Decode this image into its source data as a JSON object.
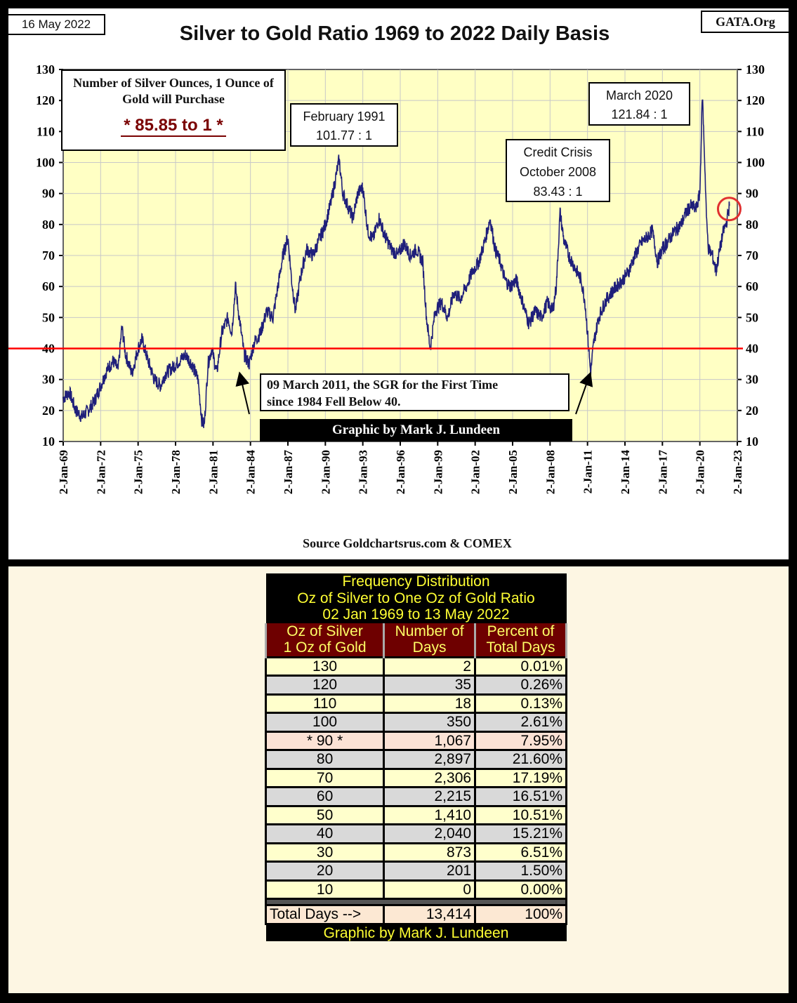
{
  "header": {
    "date": "16 May 2022",
    "site": "GATA.Org"
  },
  "chart_data": {
    "type": "line",
    "title": "Silver to Gold Ratio 1969 to 2022 Daily Basis",
    "xlabel": "",
    "ylabel": "",
    "ylim": [
      10,
      130
    ],
    "yticks": [
      "130",
      "120",
      "110",
      "100",
      "90",
      "80",
      "70",
      "60",
      "50",
      "40",
      "30",
      "20",
      "10"
    ],
    "xticks": [
      "2-Jan-69",
      "2-Jan-72",
      "2-Jan-75",
      "2-Jan-78",
      "2-Jan-81",
      "2-Jan-84",
      "2-Jan-87",
      "2-Jan-90",
      "2-Jan-93",
      "2-Jan-96",
      "2-Jan-99",
      "2-Jan-02",
      "2-Jan-05",
      "2-Jan-08",
      "2-Jan-11",
      "2-Jan-14",
      "2-Jan-17",
      "2-Jan-20",
      "2-Jan-23"
    ],
    "xlim": [
      1969,
      2023
    ],
    "grid": true,
    "reference_line": {
      "value": 40,
      "color": "#ff0000"
    },
    "line_color": "#1f1f7a",
    "series": [
      {
        "name": "Silver to Gold Ratio",
        "points": [
          [
            1969.0,
            24
          ],
          [
            1969.5,
            26
          ],
          [
            1970.0,
            20
          ],
          [
            1970.5,
            18
          ],
          [
            1971.0,
            20
          ],
          [
            1971.5,
            23
          ],
          [
            1972.0,
            28
          ],
          [
            1972.5,
            33
          ],
          [
            1973.0,
            36
          ],
          [
            1973.4,
            33
          ],
          [
            1973.7,
            47
          ],
          [
            1974.0,
            38
          ],
          [
            1974.5,
            32
          ],
          [
            1975.0,
            40
          ],
          [
            1975.3,
            43
          ],
          [
            1975.8,
            36
          ],
          [
            1976.3,
            30
          ],
          [
            1976.8,
            28
          ],
          [
            1977.2,
            32
          ],
          [
            1977.8,
            34
          ],
          [
            1978.3,
            36
          ],
          [
            1978.8,
            38
          ],
          [
            1979.3,
            35
          ],
          [
            1979.8,
            30
          ],
          [
            1980.1,
            17
          ],
          [
            1980.3,
            15
          ],
          [
            1980.6,
            35
          ],
          [
            1980.9,
            40
          ],
          [
            1981.3,
            32
          ],
          [
            1981.7,
            45
          ],
          [
            1982.2,
            50
          ],
          [
            1982.5,
            45
          ],
          [
            1982.8,
            60
          ],
          [
            1983.1,
            50
          ],
          [
            1983.5,
            38
          ],
          [
            1983.9,
            35
          ],
          [
            1984.3,
            42
          ],
          [
            1984.8,
            45
          ],
          [
            1985.3,
            52
          ],
          [
            1985.8,
            50
          ],
          [
            1986.2,
            60
          ],
          [
            1986.6,
            70
          ],
          [
            1987.0,
            76
          ],
          [
            1987.3,
            62
          ],
          [
            1987.6,
            52
          ],
          [
            1988.0,
            63
          ],
          [
            1988.5,
            72
          ],
          [
            1989.0,
            70
          ],
          [
            1989.5,
            75
          ],
          [
            1990.0,
            80
          ],
          [
            1990.5,
            88
          ],
          [
            1991.1,
            101
          ],
          [
            1991.4,
            90
          ],
          [
            1991.8,
            86
          ],
          [
            1992.2,
            82
          ],
          [
            1992.6,
            90
          ],
          [
            1993.0,
            92
          ],
          [
            1993.4,
            78
          ],
          [
            1993.8,
            75
          ],
          [
            1994.3,
            82
          ],
          [
            1994.8,
            76
          ],
          [
            1995.3,
            72
          ],
          [
            1995.8,
            70
          ],
          [
            1996.3,
            74
          ],
          [
            1996.8,
            70
          ],
          [
            1997.3,
            72
          ],
          [
            1997.8,
            68
          ],
          [
            1998.1,
            50
          ],
          [
            1998.4,
            40
          ],
          [
            1998.8,
            52
          ],
          [
            1999.3,
            55
          ],
          [
            1999.8,
            50
          ],
          [
            2000.3,
            58
          ],
          [
            2000.8,
            56
          ],
          [
            2001.3,
            60
          ],
          [
            2001.8,
            65
          ],
          [
            2002.3,
            68
          ],
          [
            2002.8,
            75
          ],
          [
            2003.2,
            82
          ],
          [
            2003.6,
            72
          ],
          [
            2004.0,
            68
          ],
          [
            2004.4,
            62
          ],
          [
            2004.8,
            60
          ],
          [
            2005.3,
            62
          ],
          [
            2005.8,
            55
          ],
          [
            2006.3,
            48
          ],
          [
            2006.8,
            52
          ],
          [
            2007.3,
            50
          ],
          [
            2007.8,
            55
          ],
          [
            2008.2,
            52
          ],
          [
            2008.5,
            60
          ],
          [
            2008.8,
            84
          ],
          [
            2009.1,
            75
          ],
          [
            2009.5,
            70
          ],
          [
            2010.0,
            66
          ],
          [
            2010.5,
            62
          ],
          [
            2010.8,
            55
          ],
          [
            2011.0,
            45
          ],
          [
            2011.25,
            32
          ],
          [
            2011.5,
            42
          ],
          [
            2011.9,
            50
          ],
          [
            2012.4,
            55
          ],
          [
            2012.9,
            58
          ],
          [
            2013.3,
            60
          ],
          [
            2013.8,
            62
          ],
          [
            2014.3,
            65
          ],
          [
            2014.8,
            70
          ],
          [
            2015.3,
            74
          ],
          [
            2015.8,
            76
          ],
          [
            2016.2,
            78
          ],
          [
            2016.6,
            68
          ],
          [
            2017.0,
            72
          ],
          [
            2017.5,
            75
          ],
          [
            2018.0,
            78
          ],
          [
            2018.5,
            80
          ],
          [
            2018.9,
            84
          ],
          [
            2019.3,
            86
          ],
          [
            2019.7,
            85
          ],
          [
            2020.0,
            90
          ],
          [
            2020.2,
            122
          ],
          [
            2020.35,
            105
          ],
          [
            2020.55,
            80
          ],
          [
            2020.7,
            72
          ],
          [
            2021.0,
            70
          ],
          [
            2021.3,
            65
          ],
          [
            2021.6,
            72
          ],
          [
            2021.9,
            78
          ],
          [
            2022.1,
            80
          ],
          [
            2022.37,
            86
          ]
        ]
      }
    ],
    "annotations": {
      "current": {
        "heading": "Number of Silver Ounces, 1 Ounce of Gold will Purchase",
        "value": "* 85.85 to 1 *"
      },
      "feb1991": {
        "line1": "February 1991",
        "line2": "101.77  : 1"
      },
      "mar2020": {
        "line1": "March 2020",
        "line2": "121.84  : 1"
      },
      "crisis": {
        "line1": "Credit Crisis",
        "line2": "October 2008",
        "line3": "83.43  : 1"
      },
      "march2011": {
        "line1": "09 March 2011, the SGR for the First Time",
        "line2": "since 1984 Fell Below 40."
      },
      "credit": "Graphic by Mark J. Lundeen",
      "circle_marker": {
        "year": 2022.35,
        "value": 85
      }
    },
    "source": "Source Goldchartsrus.com & COMEX"
  },
  "table": {
    "title": [
      "Frequency Distribution",
      "Oz of Silver to One Oz of Gold Ratio",
      "02 Jan 1969 to 13 May 2022"
    ],
    "headers": [
      [
        "Oz of Silver",
        "1 Oz of Gold"
      ],
      [
        "Number of",
        "Days"
      ],
      [
        "Percent of",
        "Total Days"
      ]
    ],
    "rows": [
      {
        "ratio": "130",
        "days": "2",
        "pct": "0.01%"
      },
      {
        "ratio": "120",
        "days": "35",
        "pct": "0.26%"
      },
      {
        "ratio": "110",
        "days": "18",
        "pct": "0.13%"
      },
      {
        "ratio": "100",
        "days": "350",
        "pct": "2.61%"
      },
      {
        "ratio": "* 90 *",
        "days": "1,067",
        "pct": "7.95%"
      },
      {
        "ratio": "80",
        "days": "2,897",
        "pct": "21.60%"
      },
      {
        "ratio": "70",
        "days": "2,306",
        "pct": "17.19%"
      },
      {
        "ratio": "60",
        "days": "2,215",
        "pct": "16.51%"
      },
      {
        "ratio": "50",
        "days": "1,410",
        "pct": "10.51%"
      },
      {
        "ratio": "40",
        "days": "2,040",
        "pct": "15.21%"
      },
      {
        "ratio": "30",
        "days": "873",
        "pct": "6.51%"
      },
      {
        "ratio": "20",
        "days": "201",
        "pct": "1.50%"
      },
      {
        "ratio": "10",
        "days": "0",
        "pct": "0.00%"
      }
    ],
    "total": {
      "label": "Total Days -->",
      "days": "13,414",
      "pct": "100%"
    },
    "footer": "Graphic by Mark J. Lundeen"
  }
}
